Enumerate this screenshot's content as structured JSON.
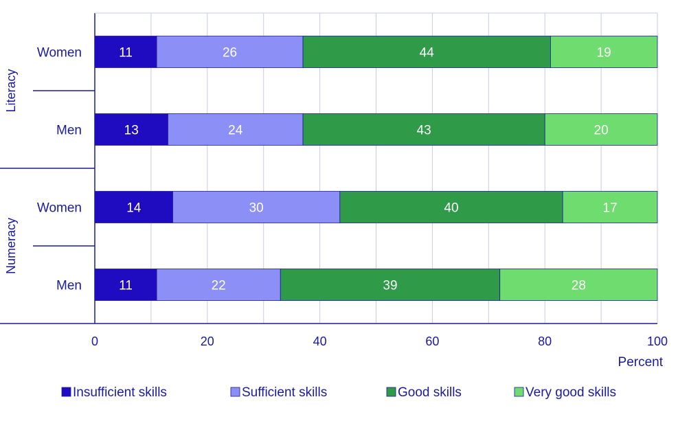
{
  "chart_data": {
    "type": "bar",
    "orientation": "horizontal",
    "stacked": true,
    "title": "",
    "xlabel": "Percent",
    "ylabel": "",
    "xlim": [
      0,
      100
    ],
    "xticks": [
      0,
      20,
      40,
      60,
      80,
      100
    ],
    "grid": true,
    "groups": [
      {
        "name": "Literacy",
        "categories": [
          "Women",
          "Men"
        ]
      },
      {
        "name": "Numeracy",
        "categories": [
          "Women",
          "Men"
        ]
      }
    ],
    "rows": [
      {
        "group": "Literacy",
        "label": "Women",
        "values": [
          11,
          26,
          44,
          19
        ]
      },
      {
        "group": "Literacy",
        "label": "Men",
        "values": [
          13,
          24,
          43,
          20
        ]
      },
      {
        "group": "Numeracy",
        "label": "Women",
        "values": [
          14,
          30,
          40,
          17
        ]
      },
      {
        "group": "Numeracy",
        "label": "Men",
        "values": [
          11,
          22,
          39,
          28
        ]
      }
    ],
    "series": [
      {
        "name": "Insufficient skills",
        "color": "#1f0cc0"
      },
      {
        "name": "Sufficient skills",
        "color": "#8c8ff6"
      },
      {
        "name": "Good skills",
        "color": "#2f9a47"
      },
      {
        "name": "Very good skills",
        "color": "#6edc6e"
      }
    ],
    "legend_position": "bottom"
  }
}
